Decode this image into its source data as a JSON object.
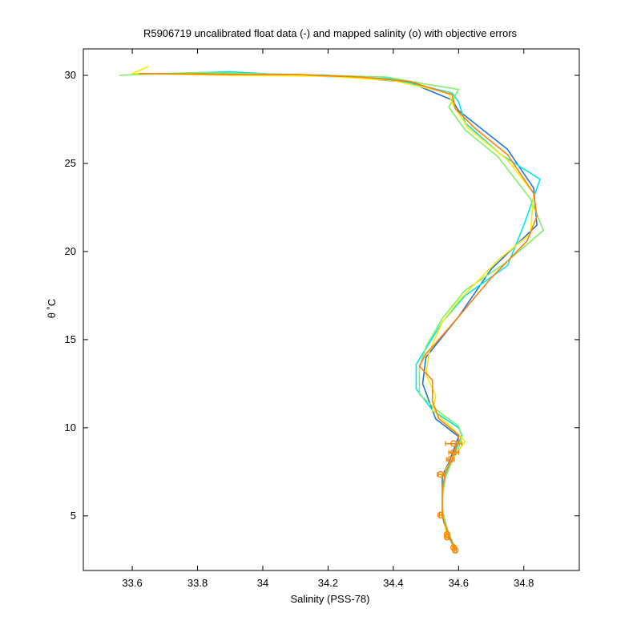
{
  "chart_data": {
    "type": "line",
    "title": "R5906719 uncalibrated float data (-) and mapped salinity (o) with objective errors",
    "xlabel": "Salinity (PSS-78)",
    "ylabel": "θ ˚C",
    "xlim": [
      33.45,
      34.97
    ],
    "ylim": [
      1.9,
      31.5
    ],
    "xticks": [
      33.6,
      33.8,
      34,
      34.2,
      34.4,
      34.6,
      34.8
    ],
    "xtick_labels": [
      "33.6",
      "33.8",
      "34",
      "34.2",
      "34.4",
      "34.6",
      "34.8"
    ],
    "yticks": [
      5,
      10,
      15,
      20,
      25,
      30
    ],
    "ytick_labels": [
      "5",
      "10",
      "15",
      "20",
      "25",
      "30"
    ],
    "grid": false,
    "series": [
      {
        "color": "#1f77d4",
        "points": [
          [
            33.68,
            30.1
          ],
          [
            34.0,
            30.05
          ],
          [
            34.2,
            30.0
          ],
          [
            34.45,
            29.6
          ],
          [
            34.58,
            28.6
          ],
          [
            34.6,
            28.0
          ],
          [
            34.75,
            25.8
          ],
          [
            34.83,
            23.6
          ],
          [
            34.84,
            21.5
          ],
          [
            34.7,
            19.0
          ],
          [
            34.6,
            16.3
          ],
          [
            34.5,
            14.0
          ],
          [
            34.49,
            12.5
          ],
          [
            34.53,
            10.5
          ],
          [
            34.6,
            9.5
          ],
          [
            34.59,
            9.0
          ],
          [
            34.58,
            8.5
          ],
          [
            34.57,
            8.0
          ],
          [
            34.55,
            7.3
          ],
          [
            34.55,
            6.5
          ],
          [
            34.55,
            5.5
          ],
          [
            34.55,
            5.0
          ],
          [
            34.56,
            4.3
          ],
          [
            34.57,
            3.8
          ],
          [
            34.59,
            3.1
          ]
        ]
      },
      {
        "color": "#00e5ee",
        "points": [
          [
            33.6,
            30.05
          ],
          [
            33.9,
            30.2
          ],
          [
            34.1,
            30.0
          ],
          [
            34.4,
            29.8
          ],
          [
            34.58,
            29.0
          ],
          [
            34.6,
            28.5
          ],
          [
            34.62,
            27.3
          ],
          [
            34.73,
            25.5
          ],
          [
            34.85,
            24.1
          ],
          [
            34.8,
            21.5
          ],
          [
            34.75,
            19.2
          ],
          [
            34.62,
            17.5
          ],
          [
            34.55,
            16.0
          ],
          [
            34.5,
            14.5
          ],
          [
            34.47,
            13.6
          ],
          [
            34.47,
            12.2
          ],
          [
            34.52,
            11.0
          ],
          [
            34.6,
            10.0
          ],
          [
            34.61,
            9.6
          ],
          [
            34.6,
            9.1
          ],
          [
            34.58,
            8.2
          ],
          [
            34.56,
            7.4
          ],
          [
            34.55,
            6.3
          ],
          [
            34.55,
            5.4
          ],
          [
            34.56,
            4.6
          ],
          [
            34.58,
            3.4
          ]
        ]
      },
      {
        "color": "#7fee6a",
        "points": [
          [
            33.56,
            30.0
          ],
          [
            33.8,
            30.15
          ],
          [
            34.1,
            30.05
          ],
          [
            34.38,
            29.9
          ],
          [
            34.5,
            29.5
          ],
          [
            34.6,
            29.2
          ],
          [
            34.57,
            28.2
          ],
          [
            34.62,
            26.9
          ],
          [
            34.72,
            25.4
          ],
          [
            34.82,
            23.0
          ],
          [
            34.86,
            21.2
          ],
          [
            34.74,
            19.3
          ],
          [
            34.62,
            17.8
          ],
          [
            34.55,
            16.2
          ],
          [
            34.5,
            14.6
          ],
          [
            34.48,
            13.4
          ],
          [
            34.48,
            11.9
          ],
          [
            34.54,
            10.9
          ],
          [
            34.6,
            10.1
          ],
          [
            34.61,
            9.5
          ],
          [
            34.6,
            8.8
          ],
          [
            34.58,
            8.1
          ],
          [
            34.56,
            7.2
          ],
          [
            34.55,
            6.0
          ],
          [
            34.55,
            5.1
          ],
          [
            34.57,
            4.0
          ],
          [
            34.59,
            3.2
          ]
        ]
      },
      {
        "color": "#ffeb00",
        "points": [
          [
            33.65,
            30.5
          ],
          [
            33.6,
            30.1
          ],
          [
            33.9,
            30.0
          ],
          [
            34.2,
            29.95
          ],
          [
            34.4,
            29.7
          ],
          [
            34.57,
            29.0
          ],
          [
            34.58,
            28.4
          ],
          [
            34.63,
            27.0
          ],
          [
            34.75,
            25.2
          ],
          [
            34.83,
            23.3
          ],
          [
            34.82,
            21.0
          ],
          [
            34.72,
            19.5
          ],
          [
            34.6,
            17.2
          ],
          [
            34.55,
            16.0
          ],
          [
            34.51,
            14.3
          ],
          [
            34.5,
            13.0
          ],
          [
            34.53,
            11.8
          ],
          [
            34.52,
            11.0
          ],
          [
            34.58,
            10.0
          ],
          [
            34.62,
            9.2
          ],
          [
            34.59,
            8.5
          ],
          [
            34.56,
            7.6
          ],
          [
            34.55,
            6.5
          ],
          [
            34.55,
            5.5
          ],
          [
            34.56,
            4.2
          ],
          [
            34.59,
            3.2
          ]
        ]
      },
      {
        "color": "#ff7f0e",
        "points": [
          [
            33.62,
            30.1
          ],
          [
            33.9,
            30.05
          ],
          [
            34.1,
            30.05
          ],
          [
            34.3,
            29.9
          ],
          [
            34.45,
            29.65
          ],
          [
            34.58,
            28.9
          ],
          [
            34.59,
            28.1
          ],
          [
            34.65,
            27.0
          ],
          [
            34.75,
            25.5
          ],
          [
            34.83,
            23.3
          ],
          [
            34.84,
            22.0
          ],
          [
            34.81,
            20.6
          ],
          [
            34.7,
            18.5
          ],
          [
            34.6,
            16.3
          ],
          [
            34.53,
            14.8
          ],
          [
            34.5,
            14.2
          ],
          [
            34.48,
            13.5
          ],
          [
            34.52,
            12.7
          ],
          [
            34.52,
            11.5
          ],
          [
            34.54,
            10.5
          ],
          [
            34.6,
            9.6
          ],
          [
            34.6,
            9.2
          ],
          [
            34.59,
            8.8
          ],
          [
            34.58,
            8.2
          ],
          [
            34.56,
            7.5
          ],
          [
            34.55,
            6.5
          ],
          [
            34.55,
            5.0
          ],
          [
            34.57,
            3.9
          ],
          [
            34.59,
            3.1
          ]
        ]
      }
    ],
    "mapped_salinity": {
      "color": "#ff8c00",
      "points": [
        {
          "x": 34.585,
          "y": 9.1,
          "err": 0.025
        },
        {
          "x": 34.585,
          "y": 8.6,
          "err": 0.015
        },
        {
          "x": 34.575,
          "y": 8.2,
          "err": 0.012
        },
        {
          "x": 34.545,
          "y": 7.35,
          "err": 0.01
        },
        {
          "x": 34.545,
          "y": 5.05,
          "err": 0.004
        },
        {
          "x": 34.565,
          "y": 3.95,
          "err": 0.003
        },
        {
          "x": 34.565,
          "y": 3.8,
          "err": 0.003
        },
        {
          "x": 34.585,
          "y": 3.2,
          "err": 0.003
        },
        {
          "x": 34.59,
          "y": 3.05,
          "err": 0.003
        }
      ]
    }
  }
}
